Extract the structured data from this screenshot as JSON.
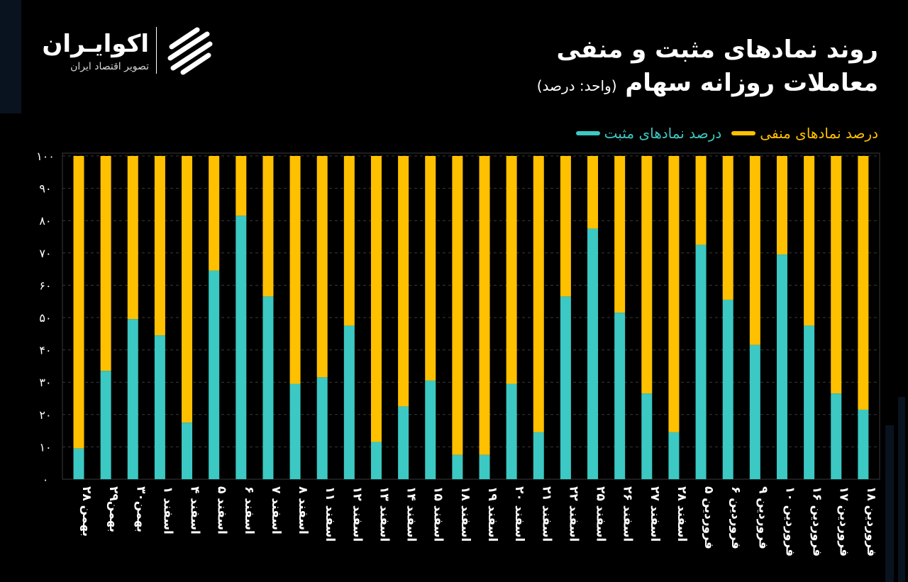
{
  "header": {
    "title_line1": "روند نمادهای مثبت و منفی",
    "title_line2": "معاملات روزانه سهام",
    "unit": "(واحد: درصد)"
  },
  "brand": {
    "name": "اکوایـران",
    "tagline": "تصویر اقتصاد ایران",
    "logo_icon": "ecoiran-logo-icon"
  },
  "legend": {
    "positive_label": "درصد نمادهای مثبت",
    "negative_label": "درصد نمادهای منفی"
  },
  "colors": {
    "positive": "#3cc8c3",
    "negative": "#ffc000",
    "background": "#000000",
    "grid": "#3a3a3a"
  },
  "chart_data": {
    "type": "bar",
    "stacked": true,
    "categories": [
      "۲۸ بهمن",
      "۲۹بهمن",
      "۳۰بهمن",
      "۱ اسفند",
      "۴ اسفند",
      "۵ اسفند",
      "۶ اسفند",
      "۷ اسفند",
      "۸ اسفند",
      "۱۱ اسفند",
      "۱۲ اسفند",
      "۱۳ اسفند",
      "۱۴ اسفند",
      "۱۵ اسفند",
      "۱۸ اسفند",
      "۱۹ اسفند",
      "۲۰ اسفند",
      "۲۱ اسفند",
      "۲۲ اسفند",
      "۲۵ اسفند",
      "۲۶ اسفند",
      "۲۷ اسفند",
      "۲۸ اسفند",
      "۵ فروردین",
      "۶ فروردین",
      "۹ فروردین",
      "۱۰ فروردین",
      "۱۶ فروردین",
      "۱۷ فروردین",
      "۱۸ فروردین"
    ],
    "series": [
      {
        "name": "درصد نمادهای مثبت",
        "values": [
          9.5,
          33.5,
          49.5,
          44.5,
          17.5,
          64.5,
          81.5,
          56.5,
          29.5,
          31.5,
          47.5,
          11.5,
          22.5,
          30.5,
          7.5,
          7.5,
          29.5,
          14.5,
          56.5,
          77.5,
          51.5,
          26.5,
          14.5,
          72.5,
          55.5,
          41.5,
          69.5,
          47.5,
          26.5,
          21.5
        ]
      },
      {
        "name": "درصد نمادهای منفی",
        "values": [
          90.5,
          66.5,
          50.5,
          55.5,
          82.5,
          35.5,
          18.5,
          43.5,
          70.5,
          68.5,
          52.5,
          88.5,
          77.5,
          69.5,
          92.5,
          92.5,
          70.5,
          85.5,
          43.5,
          22.5,
          48.5,
          73.5,
          85.5,
          27.5,
          44.5,
          58.5,
          30.5,
          52.5,
          73.5,
          78.5
        ]
      }
    ],
    "yticks": [
      "۰",
      "۱۰",
      "۲۰",
      "۳۰",
      "۴۰",
      "۵۰",
      "۶۰",
      "۷۰",
      "۸۰",
      "۹۰",
      "۱۰۰"
    ],
    "ylim": [
      0,
      100
    ],
    "grid": true,
    "legend_position": "top-right"
  }
}
